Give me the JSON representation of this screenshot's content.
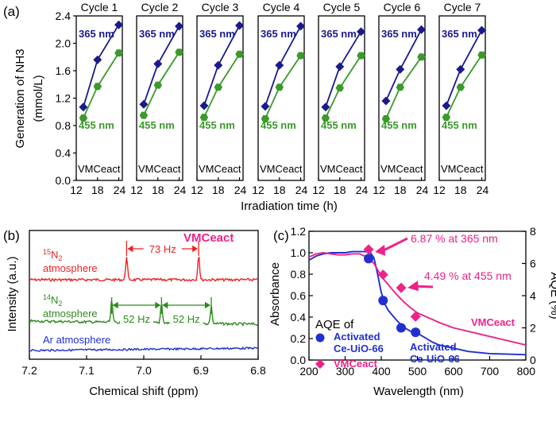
{
  "chart_data": [
    {
      "type": "line",
      "panel_label": "(a)",
      "ylabel": "Generation of NH3",
      "yunit": "(mmol/L)",
      "xlabel": "Irradiation time (h)",
      "ylim": [
        0,
        2.4
      ],
      "yticks": [
        "0.0",
        "0.4",
        "0.8",
        "1.2",
        "1.6",
        "2.0",
        "2.4"
      ],
      "xlim": [
        12,
        25
      ],
      "xticks": [
        "12",
        "18",
        "24"
      ],
      "sample_label": "VMCeact",
      "series_names": [
        "365 nm",
        "455 nm"
      ],
      "colors": {
        "365 nm": "#1a1a8c",
        "455 nm": "#3a9a2a"
      },
      "cycles": [
        {
          "name": "Cycle 1",
          "x": [
            14,
            18,
            24
          ],
          "s365": [
            1.07,
            1.76,
            2.27
          ],
          "s455": [
            0.91,
            1.37,
            1.86
          ]
        },
        {
          "name": "Cycle 2",
          "x": [
            14,
            18,
            24
          ],
          "s365": [
            1.11,
            1.7,
            2.25
          ],
          "s455": [
            0.95,
            1.39,
            1.87
          ]
        },
        {
          "name": "Cycle 3",
          "x": [
            14,
            18,
            24
          ],
          "s365": [
            1.09,
            1.68,
            2.26
          ],
          "s455": [
            0.92,
            1.36,
            1.84
          ]
        },
        {
          "name": "Cycle 4",
          "x": [
            14,
            18,
            24
          ],
          "s365": [
            1.08,
            1.68,
            2.25
          ],
          "s455": [
            0.9,
            1.36,
            1.82
          ]
        },
        {
          "name": "Cycle 5",
          "x": [
            14,
            18,
            24
          ],
          "s365": [
            1.07,
            1.66,
            2.17
          ],
          "s455": [
            0.91,
            1.35,
            1.82
          ]
        },
        {
          "name": "Cycle 6",
          "x": [
            14,
            18,
            24
          ],
          "s365": [
            1.16,
            1.62,
            2.2
          ],
          "s455": [
            0.9,
            1.36,
            1.8
          ]
        },
        {
          "name": "Cycle 7",
          "x": [
            14,
            18,
            24
          ],
          "s365": [
            1.09,
            1.62,
            2.19
          ],
          "s455": [
            0.92,
            1.36,
            1.83
          ]
        }
      ]
    },
    {
      "type": "line",
      "panel_label": "(b)",
      "title": "VMCeact",
      "xlabel": "Chemical shift (ppm)",
      "ylabel": "Intensity (a.u.)",
      "xlim": [
        7.2,
        6.8
      ],
      "xticks": [
        "7.2",
        "7.1",
        "7.0",
        "6.9",
        "6.8"
      ],
      "traces": [
        {
          "name_sup": "15",
          "name_rest": "N",
          "name_sub": "2",
          "name_line2": "atmosphere",
          "color": "#ee2222",
          "peaks": [
            7.03,
            6.904
          ]
        },
        {
          "name_sup": "14",
          "name_rest": "N",
          "name_sub": "2",
          "name_line2": "atmosphere",
          "color": "#2e8a1e",
          "peaks": [
            7.056,
            6.969,
            6.882
          ]
        },
        {
          "name_full": "Ar atmosphere",
          "color": "#2030d0",
          "peaks": []
        }
      ],
      "annotations": [
        "73 Hz",
        "52 Hz",
        "52 Hz"
      ]
    },
    {
      "type": "line",
      "panel_label": "(c)",
      "xlabel": "Wavelength (nm)",
      "ylabel": "Absorbance",
      "ylabel_right": "AQE (%)",
      "xlim": [
        200,
        800
      ],
      "ylim": [
        0,
        1.2
      ],
      "ylim_right": [
        0,
        8
      ],
      "xticks": [
        "200",
        "300",
        "400",
        "500",
        "600",
        "700",
        "800"
      ],
      "yticks": [
        "0.0",
        "0.2",
        "0.4",
        "0.6",
        "0.8",
        "1.0",
        "1.2"
      ],
      "yticks_right": [
        "0",
        "2",
        "4",
        "6",
        "8"
      ],
      "legend_title": "AQE of",
      "legend": [
        {
          "label": "Activated Ce-UiO-66",
          "line1": "Activated",
          "line2": "Ce-UiO-66",
          "color": "#2030d0",
          "marker": "circle"
        },
        {
          "label": "VMCeact",
          "color": "#ee2288",
          "marker": "diamond"
        }
      ],
      "line_labels": [
        {
          "line1": "Activated",
          "line2": "Ce-UiO-66",
          "color": "#2030d0"
        },
        {
          "line1": "VMCeact",
          "color": "#ee2288"
        }
      ],
      "series": [
        {
          "name": "Activated Ce-UiO-66",
          "color": "#2030d0",
          "x": [
            200,
            220,
            240,
            260,
            280,
            300,
            320,
            340,
            360,
            370,
            380,
            390,
            400,
            410,
            420,
            440,
            460,
            480,
            500,
            520,
            540,
            560,
            600,
            640,
            700,
            800
          ],
          "y": [
            0.93,
            0.97,
            0.99,
            1.0,
            1.0,
            1.0,
            1.01,
            1.01,
            1.01,
            1.0,
            0.95,
            0.8,
            0.63,
            0.52,
            0.46,
            0.38,
            0.31,
            0.27,
            0.25,
            0.21,
            0.17,
            0.14,
            0.11,
            0.08,
            0.06,
            0.05
          ]
        },
        {
          "name": "VMCeact",
          "color": "#ee2288",
          "x": [
            200,
            220,
            240,
            260,
            280,
            300,
            320,
            340,
            360,
            380,
            400,
            420,
            440,
            460,
            480,
            500,
            520,
            560,
            600,
            650,
            700,
            750,
            800
          ],
          "y": [
            0.96,
            0.99,
            1.0,
            0.99,
            0.98,
            0.98,
            0.99,
            0.99,
            0.96,
            0.9,
            0.78,
            0.7,
            0.62,
            0.55,
            0.49,
            0.44,
            0.41,
            0.35,
            0.3,
            0.26,
            0.22,
            0.18,
            0.14
          ]
        }
      ],
      "aqe_points": {
        "Activated Ce-UiO-66": {
          "x": [
            365,
            405,
            455,
            495
          ],
          "y": [
            6.3,
            3.7,
            2.0,
            1.72
          ]
        },
        "VMCeact": {
          "x": [
            365,
            405,
            455,
            495
          ],
          "y": [
            6.87,
            5.3,
            4.49,
            2.7
          ]
        }
      },
      "annotations": [
        "6.87 % at 365 nm",
        "4.49 % at 455 nm"
      ]
    }
  ]
}
